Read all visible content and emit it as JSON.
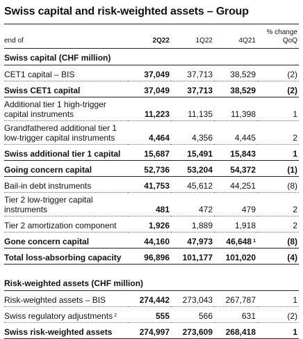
{
  "title": "Swiss capital and risk-weighted assets – Group",
  "header": {
    "end_of": "end of",
    "col_2q22": "2Q22",
    "col_1q22": "1Q22",
    "col_4q21": "4Q21",
    "pct_change_line1": "% change",
    "pct_change_line2": "QoQ"
  },
  "section_capital": "Swiss capital (CHF million)",
  "section_rwa": "Risk-weighted assets (CHF million)",
  "rows_capital": [
    {
      "label": "CET1 capital – BIS",
      "q2": "37,049",
      "q1": "37,713",
      "q4": "38,529",
      "chg": "(2)"
    },
    {
      "label": "Swiss CET1 capital",
      "q2": "37,049",
      "q1": "37,713",
      "q4": "38,529",
      "chg": "(2)"
    },
    {
      "label": "Additional tier 1 high-trigger capital instruments",
      "q2": "11,223",
      "q1": "11,135",
      "q4": "11,398",
      "chg": "1"
    },
    {
      "label": "Grandfathered additional tier 1 low-trigger capital instruments",
      "q2": "4,464",
      "q1": "4,356",
      "q4": "4,445",
      "chg": "2"
    },
    {
      "label": "Swiss additional tier 1 capital",
      "q2": "15,687",
      "q1": "15,491",
      "q4": "15,843",
      "chg": "1"
    },
    {
      "label": "Going concern capital",
      "q2": "52,736",
      "q1": "53,204",
      "q4": "54,372",
      "chg": "(1)"
    },
    {
      "label": "Bail-in debt instruments",
      "q2": "41,753",
      "q1": "45,612",
      "q4": "44,251",
      "chg": "(8)"
    },
    {
      "label": "Tier 2 low-trigger capital instruments",
      "q2": "481",
      "q1": "472",
      "q4": "479",
      "chg": "2"
    },
    {
      "label": "Tier 2 amortization component",
      "q2": "1,926",
      "q1": "1,889",
      "q4": "1,918",
      "chg": "2"
    },
    {
      "label": "Gone concern capital",
      "q2": "44,160",
      "q1": "47,973",
      "q4": "46,648",
      "q4_note": "1",
      "chg": "(8)"
    },
    {
      "label": "Total loss-absorbing capacity",
      "q2": "96,896",
      "q1": "101,177",
      "q4": "101,020",
      "chg": "(4)"
    }
  ],
  "rows_rwa": [
    {
      "label": "Risk-weighted assets – BIS",
      "q2": "274,442",
      "q1": "273,043",
      "q4": "267,787",
      "chg": "1"
    },
    {
      "label": "Swiss regulatory adjustments",
      "label_note": "2",
      "q2": "555",
      "q1": "566",
      "q4": "631",
      "chg": "(2)"
    },
    {
      "label": "Swiss risk-weighted assets",
      "q2": "274,997",
      "q1": "273,609",
      "q4": "268,418",
      "chg": "1"
    }
  ]
}
